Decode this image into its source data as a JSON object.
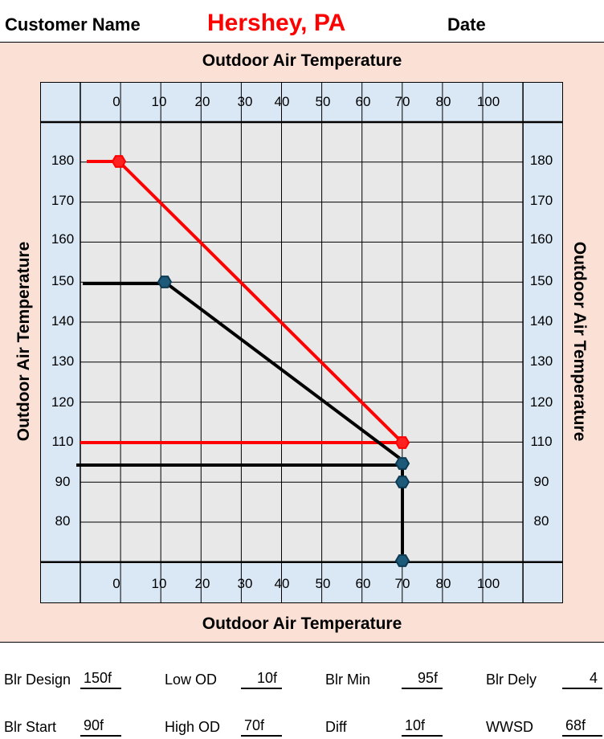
{
  "header": {
    "customer_label": "Customer Name",
    "customer_value": "Hershey, PA",
    "date_label": "Date"
  },
  "chart_data": {
    "type": "line",
    "title_top": "Outdoor Air Temperature",
    "title_bottom": "Outdoor Air Temperature",
    "ylabel_left": "Outdoor Air Temperature",
    "ylabel_right": "Outdoor Air Temperature",
    "x_ticks": [
      "0",
      "10",
      "20",
      "30",
      "40",
      "50",
      "60",
      "70",
      "80",
      "100"
    ],
    "y_ticks": [
      "180",
      "170",
      "160",
      "150",
      "140",
      "130",
      "120",
      "110",
      "90",
      "80"
    ],
    "grid": true,
    "series": [
      {
        "name": "red",
        "color": "#ff0000",
        "points": [
          [
            0,
            180
          ],
          [
            70,
            110
          ]
        ],
        "markers": [
          [
            0,
            180
          ],
          [
            70,
            110
          ]
        ],
        "lead_lines": [
          180,
          110
        ]
      },
      {
        "name": "black",
        "color": "#000000",
        "points": [
          [
            10,
            150
          ],
          [
            68,
            98
          ],
          [
            70,
            95
          ],
          [
            70,
            90
          ],
          [
            70,
            70
          ]
        ],
        "markers": [
          [
            10,
            150
          ],
          [
            70,
            95
          ],
          [
            70,
            90
          ],
          [
            70,
            70
          ]
        ],
        "lead_lines": [
          150,
          95
        ]
      }
    ]
  },
  "fields": [
    {
      "label": "Blr Design",
      "value": "150f"
    },
    {
      "label": "Low OD",
      "value": "10f"
    },
    {
      "label": "Blr Min",
      "value": "95f"
    },
    {
      "label": "Blr Dely",
      "value": "4"
    },
    {
      "label": "Blr Start",
      "value": "90f"
    },
    {
      "label": "High OD",
      "value": "70f"
    },
    {
      "label": "Diff",
      "value": "10f"
    },
    {
      "label": "WWSD",
      "value": "68f"
    }
  ]
}
